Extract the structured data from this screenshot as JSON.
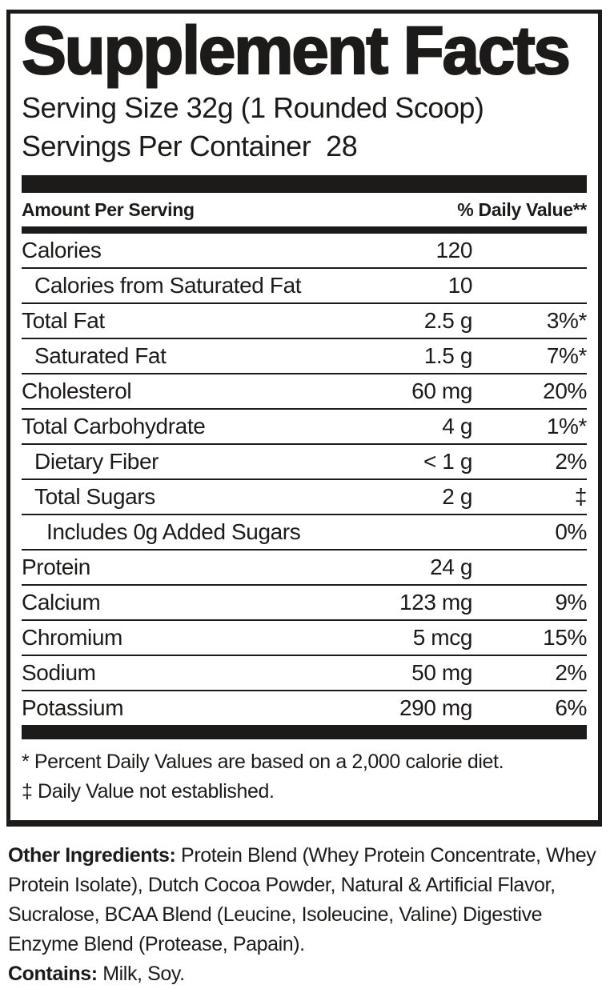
{
  "colors": {
    "ink": "#1d1b1a",
    "background": "#ffffff"
  },
  "panel": {
    "title": "Supplement Facts",
    "serving_size": "Serving Size 32g (1 Rounded Scoop)",
    "servings_per_container": "Servings Per Container  28",
    "headers": {
      "amount": "Amount Per Serving",
      "daily_value": "% Daily Value**"
    },
    "rows": [
      {
        "name": "Calories",
        "amount": "120",
        "dv": ""
      },
      {
        "name": "Calories from Saturated Fat",
        "amount": "10",
        "dv": ""
      },
      {
        "name": "Total Fat",
        "amount": "2.5 g",
        "dv": "3%*"
      },
      {
        "name": "Saturated Fat",
        "amount": "1.5 g",
        "dv": "7%*"
      },
      {
        "name": "Cholesterol",
        "amount": "60 mg",
        "dv": "20%"
      },
      {
        "name": "Total Carbohydrate",
        "amount": "4 g",
        "dv": "1%*"
      },
      {
        "name": "Dietary Fiber",
        "amount": "< 1 g",
        "dv": "2%"
      },
      {
        "name": "Total Sugars",
        "amount": "2 g",
        "dv": "‡"
      },
      {
        "name": "Includes 0g Added Sugars",
        "amount": "",
        "dv": "0%"
      },
      {
        "name": "Protein",
        "amount": "24 g",
        "dv": ""
      },
      {
        "name": "Calcium",
        "amount": "123 mg",
        "dv": "9%"
      },
      {
        "name": "Chromium",
        "amount": "5 mcg",
        "dv": "15%"
      },
      {
        "name": "Sodium",
        "amount": "50 mg",
        "dv": "2%"
      },
      {
        "name": "Potassium",
        "amount": "290 mg",
        "dv": "6%"
      }
    ],
    "footnotes": [
      "* Percent Daily Values are based on a 2,000 calorie diet.",
      "‡ Daily Value not established."
    ]
  },
  "footer": {
    "other_ingredients_label": "Other Ingredients:",
    "other_ingredients_text": "Protein Blend (Whey Protein Concentrate, Whey Protein Isolate), Dutch Cocoa Powder, Natural & Artificial Flavor, Sucralose, BCAA Blend (Leucine, Isoleucine, Valine) Digestive Enzyme Blend (Protease, Papain).",
    "contains_label": "Contains:",
    "contains_text": "Milk, Soy."
  }
}
